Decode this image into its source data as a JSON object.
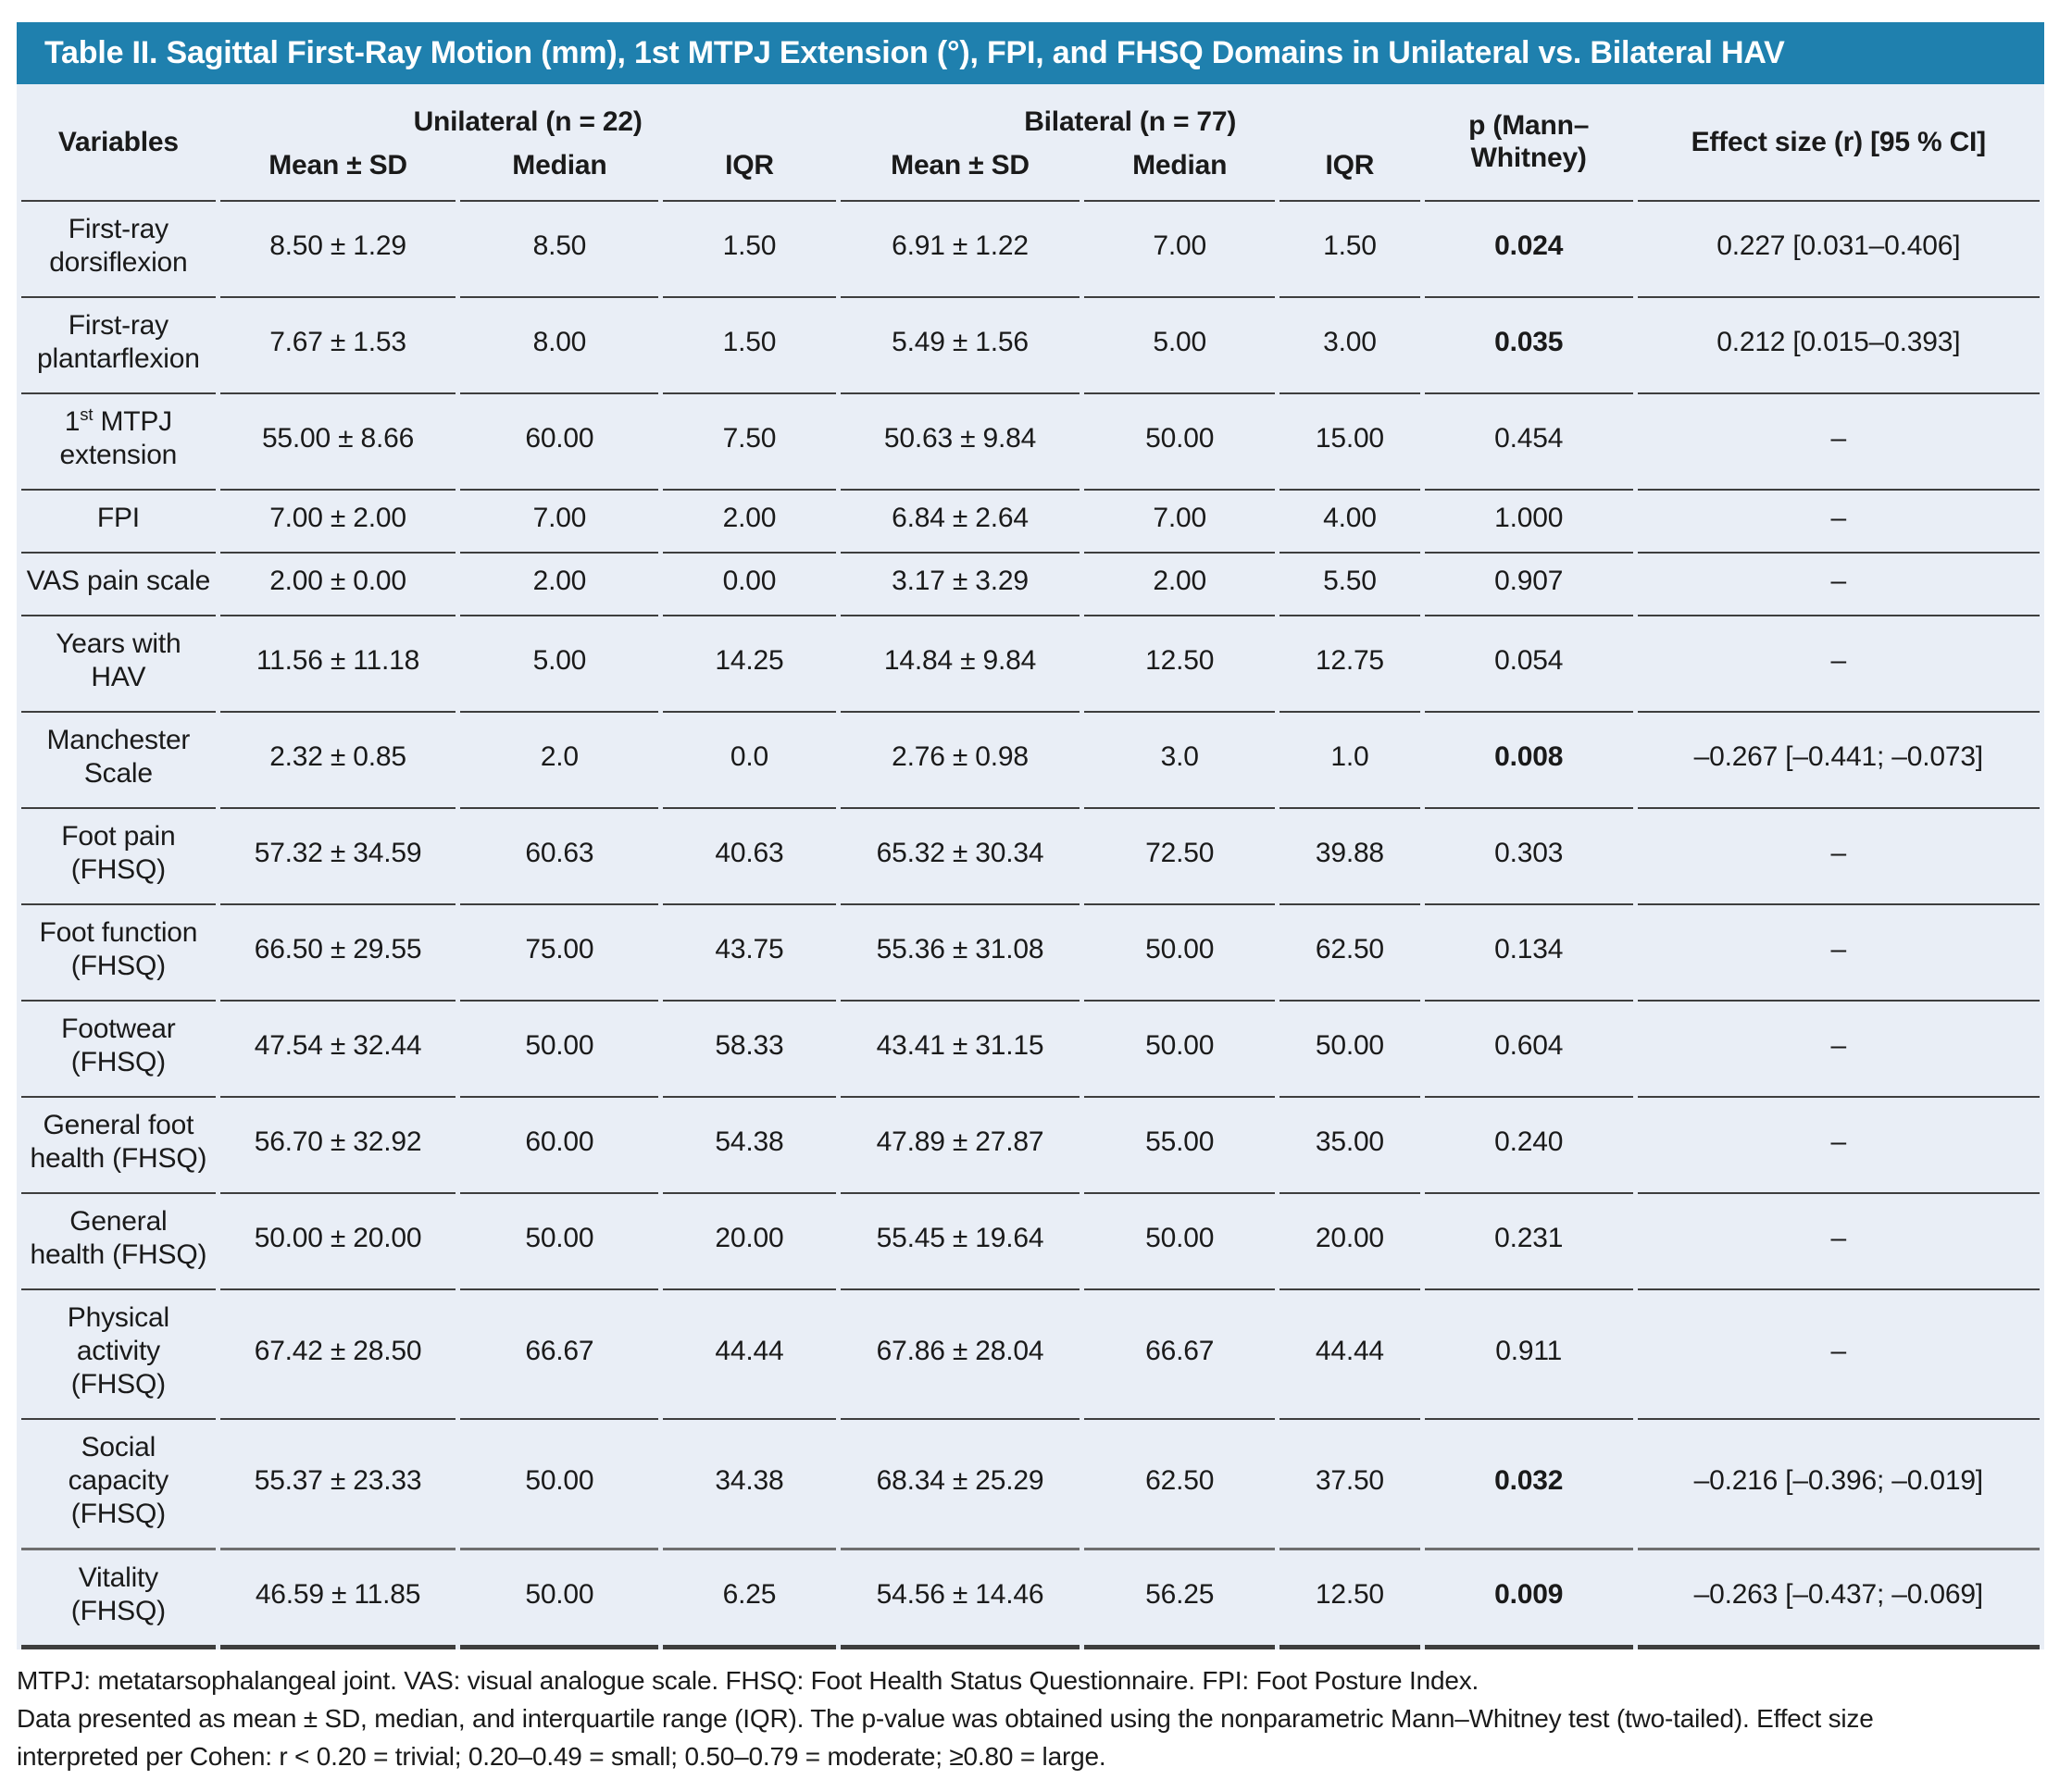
{
  "title": "Table II. Sagittal First-Ray Motion (mm), 1st MTPJ Extension (°), FPI, and FHSQ Domains in Unilateral vs. Bilateral HAV",
  "colors": {
    "header_bar_bg": "#1f80ae",
    "header_bar_text": "#ffffff",
    "table_bg": "#e9eef6",
    "row_border": "#3e3e3e",
    "text": "#1a1a1a"
  },
  "table": {
    "header": {
      "variables": "Variables",
      "unilateral_group": "Unilateral (n = 22)",
      "bilateral_group": "Bilateral (n = 77)",
      "p_line1": "p (Mann–",
      "p_line2": "Whitney)",
      "effect_size": "Effect size (r) [95 % CI]"
    },
    "subheaders": [
      "Mean ± SD",
      "Median",
      "IQR",
      "Mean ± SD",
      "Median",
      "IQR"
    ],
    "rows": [
      {
        "variable_lines": [
          "First-ray",
          "dorsiflexion"
        ],
        "unilateral": {
          "mean_sd": "8.50 ± 1.29",
          "median": "8.50",
          "iqr": "1.50"
        },
        "bilateral": {
          "mean_sd": "6.91 ± 1.22",
          "median": "7.00",
          "iqr": "1.50"
        },
        "p_value": "0.024",
        "p_significant": true,
        "effect_size": "0.227 [0.031–0.406]"
      },
      {
        "variable_lines": [
          "First-ray",
          "plantarflexion"
        ],
        "unilateral": {
          "mean_sd": "7.67 ± 1.53",
          "median": "8.00",
          "iqr": "1.50"
        },
        "bilateral": {
          "mean_sd": "5.49 ± 1.56",
          "median": "5.00",
          "iqr": "3.00"
        },
        "p_value": "0.035",
        "p_significant": true,
        "effect_size": "0.212 [0.015–0.393]"
      },
      {
        "variable_lines": [
          "1^st^ MTPJ",
          "extension"
        ],
        "unilateral": {
          "mean_sd": "55.00 ± 8.66",
          "median": "60.00",
          "iqr": "7.50"
        },
        "bilateral": {
          "mean_sd": "50.63 ± 9.84",
          "median": "50.00",
          "iqr": "15.00"
        },
        "p_value": "0.454",
        "p_significant": false,
        "effect_size": "–"
      },
      {
        "variable_lines": [
          "FPI"
        ],
        "unilateral": {
          "mean_sd": "7.00 ± 2.00",
          "median": "7.00",
          "iqr": "2.00"
        },
        "bilateral": {
          "mean_sd": "6.84 ± 2.64",
          "median": "7.00",
          "iqr": "4.00"
        },
        "p_value": "1.000",
        "p_significant": false,
        "effect_size": "–"
      },
      {
        "variable_lines": [
          "VAS pain scale"
        ],
        "unilateral": {
          "mean_sd": "2.00 ± 0.00",
          "median": "2.00",
          "iqr": "0.00"
        },
        "bilateral": {
          "mean_sd": "3.17 ± 3.29",
          "median": "2.00",
          "iqr": "5.50"
        },
        "p_value": "0.907",
        "p_significant": false,
        "effect_size": "–"
      },
      {
        "variable_lines": [
          "Years with",
          "HAV"
        ],
        "unilateral": {
          "mean_sd": "11.56 ± 11.18",
          "median": "5.00",
          "iqr": "14.25"
        },
        "bilateral": {
          "mean_sd": "14.84 ± 9.84",
          "median": "12.50",
          "iqr": "12.75"
        },
        "p_value": "0.054",
        "p_significant": false,
        "effect_size": "–"
      },
      {
        "variable_lines": [
          "Manchester",
          "Scale"
        ],
        "unilateral": {
          "mean_sd": "2.32 ± 0.85",
          "median": "2.0",
          "iqr": "0.0"
        },
        "bilateral": {
          "mean_sd": "2.76 ± 0.98",
          "median": "3.0",
          "iqr": "1.0"
        },
        "p_value": "0.008",
        "p_significant": true,
        "effect_size": "–0.267 [–0.441; –0.073]"
      },
      {
        "variable_lines": [
          "Foot pain",
          "(FHSQ)"
        ],
        "unilateral": {
          "mean_sd": "57.32 ± 34.59",
          "median": "60.63",
          "iqr": "40.63"
        },
        "bilateral": {
          "mean_sd": "65.32 ± 30.34",
          "median": "72.50",
          "iqr": "39.88"
        },
        "p_value": "0.303",
        "p_significant": false,
        "effect_size": "–"
      },
      {
        "variable_lines": [
          "Foot function",
          "(FHSQ)"
        ],
        "unilateral": {
          "mean_sd": "66.50 ± 29.55",
          "median": "75.00",
          "iqr": "43.75"
        },
        "bilateral": {
          "mean_sd": "55.36 ± 31.08",
          "median": "50.00",
          "iqr": "62.50"
        },
        "p_value": "0.134",
        "p_significant": false,
        "effect_size": "–"
      },
      {
        "variable_lines": [
          "Footwear",
          "(FHSQ)"
        ],
        "unilateral": {
          "mean_sd": "47.54 ± 32.44",
          "median": "50.00",
          "iqr": "58.33"
        },
        "bilateral": {
          "mean_sd": "43.41 ± 31.15",
          "median": "50.00",
          "iqr": "50.00"
        },
        "p_value": "0.604",
        "p_significant": false,
        "effect_size": "–"
      },
      {
        "variable_lines": [
          "General foot",
          "health (FHSQ)"
        ],
        "unilateral": {
          "mean_sd": "56.70 ± 32.92",
          "median": "60.00",
          "iqr": "54.38"
        },
        "bilateral": {
          "mean_sd": "47.89 ± 27.87",
          "median": "55.00",
          "iqr": "35.00"
        },
        "p_value": "0.240",
        "p_significant": false,
        "effect_size": "–"
      },
      {
        "variable_lines": [
          "General",
          "health (FHSQ)"
        ],
        "unilateral": {
          "mean_sd": "50.00 ± 20.00",
          "median": "50.00",
          "iqr": "20.00"
        },
        "bilateral": {
          "mean_sd": "55.45 ± 19.64",
          "median": "50.00",
          "iqr": "20.00"
        },
        "p_value": "0.231",
        "p_significant": false,
        "effect_size": "–"
      },
      {
        "variable_lines": [
          "Physical",
          "activity",
          "(FHSQ)"
        ],
        "unilateral": {
          "mean_sd": "67.42 ± 28.50",
          "median": "66.67",
          "iqr": "44.44"
        },
        "bilateral": {
          "mean_sd": "67.86 ± 28.04",
          "median": "66.67",
          "iqr": "44.44"
        },
        "p_value": "0.911",
        "p_significant": false,
        "effect_size": "–"
      },
      {
        "variable_lines": [
          "Social",
          "capacity",
          "(FHSQ)"
        ],
        "unilateral": {
          "mean_sd": "55.37 ± 23.33",
          "median": "50.00",
          "iqr": "34.38"
        },
        "bilateral": {
          "mean_sd": "68.34 ± 25.29",
          "median": "62.50",
          "iqr": "37.50"
        },
        "p_value": "0.032",
        "p_significant": true,
        "effect_size": "–0.216 [–0.396; –0.019]"
      },
      {
        "variable_lines": [
          "Vitality",
          "(FHSQ)"
        ],
        "unilateral": {
          "mean_sd": "46.59 ± 11.85",
          "median": "50.00",
          "iqr": "6.25"
        },
        "bilateral": {
          "mean_sd": "54.56 ± 14.46",
          "median": "56.25",
          "iqr": "12.50"
        },
        "p_value": "0.009",
        "p_significant": true,
        "effect_size": "–0.263 [–0.437; –0.069]"
      }
    ]
  },
  "footnotes": [
    "MTPJ: metatarsophalangeal joint. VAS: visual analogue scale. FHSQ: Foot Health Status Questionnaire. FPI: Foot Posture Index.",
    "Data presented as mean ± SD, median, and interquartile range (IQR). The p-value was obtained using the nonparametric Mann–Whitney test (two-tailed). Effect size",
    "interpreted per Cohen: r < 0.20 = trivial; 0.20–0.49 = small; 0.50–0.79 = moderate; ≥0.80 = large."
  ]
}
